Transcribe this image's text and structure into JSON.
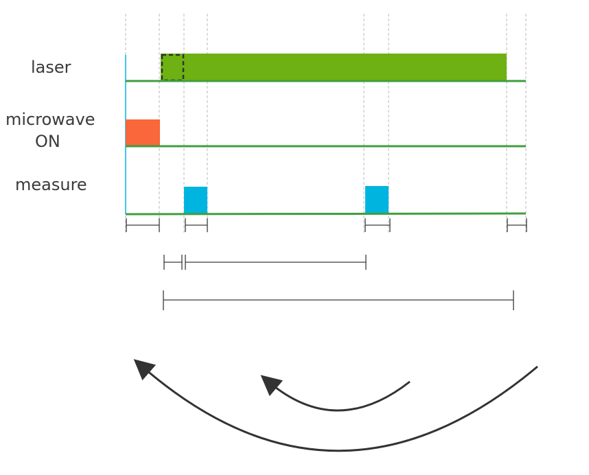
{
  "rows": [
    {
      "id": "laser",
      "label_lines": [
        "laser"
      ]
    },
    {
      "id": "microwave",
      "label_lines": [
        "microwave",
        "ON"
      ]
    },
    {
      "id": "measure",
      "label_lines": [
        "measure"
      ]
    }
  ],
  "colors": {
    "laser_pulse": "#6db212",
    "microwave_pulse": "#f9673a",
    "measure_pulse": "#00b4e0",
    "baseline": "#3f9e3f",
    "guide": "#b8b8b8",
    "interval": "#3a3a3a",
    "arrow": "#333333",
    "dashed_box": "#333333"
  }
}
